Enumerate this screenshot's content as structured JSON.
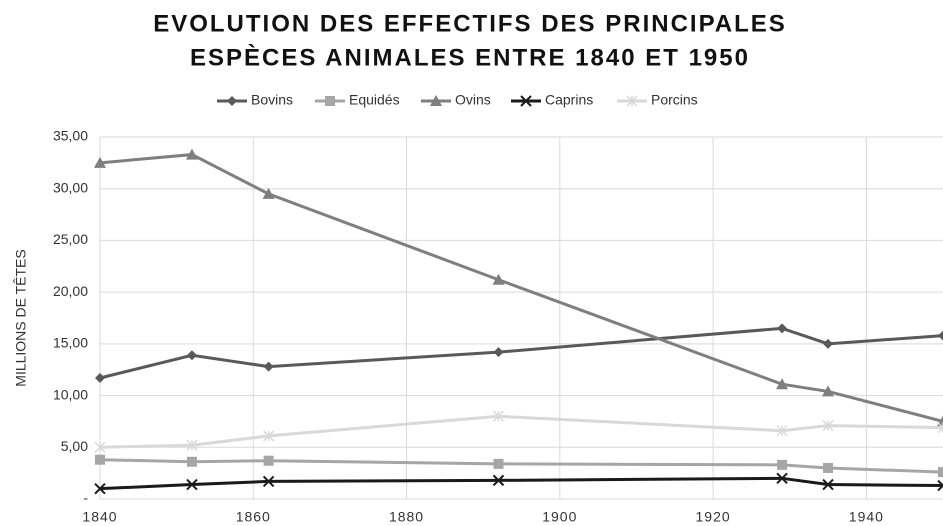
{
  "chart_data": {
    "type": "line",
    "title": [
      "EVOLUTION DES EFFECTIFS DES PRINCIPALES",
      "ESPÈCES ANIMALES ENTRE 1840 ET 1950"
    ],
    "y_label": "MILLIONS DE TÊTES",
    "x": [
      1840,
      1852,
      1862,
      1892,
      1929,
      1935,
      1950
    ],
    "series": [
      {
        "name": "Bovins",
        "color": "#595959",
        "marker": "diamond",
        "values": [
          11.7,
          13.9,
          12.8,
          14.2,
          16.5,
          15.0,
          15.8
        ]
      },
      {
        "name": "Equidés",
        "color": "#a6a6a6",
        "marker": "square",
        "values": [
          3.8,
          3.6,
          3.7,
          3.4,
          3.3,
          3.0,
          2.6
        ]
      },
      {
        "name": "Ovins",
        "color": "#7f7f7f",
        "marker": "triangle",
        "values": [
          32.5,
          33.3,
          29.5,
          21.2,
          11.1,
          10.4,
          7.5
        ]
      },
      {
        "name": "Caprins",
        "color": "#1a1a1a",
        "marker": "x",
        "values": [
          1.0,
          1.4,
          1.7,
          1.8,
          2.0,
          1.4,
          1.3
        ]
      },
      {
        "name": "Porcins",
        "color": "#d9d9d9",
        "marker": "star",
        "values": [
          5.0,
          5.2,
          6.1,
          8.0,
          6.6,
          7.1,
          6.9
        ]
      }
    ],
    "xlim": [
      1840,
      1950
    ],
    "xticks": [
      1840,
      1860,
      1880,
      1900,
      1920,
      1940
    ],
    "ylim": [
      0,
      35
    ],
    "yticks": [
      {
        "value": 0,
        "label": "-"
      },
      {
        "value": 5,
        "label": "5,00"
      },
      {
        "value": 10,
        "label": "10,00"
      },
      {
        "value": 15,
        "label": "15,00"
      },
      {
        "value": 20,
        "label": "20,00"
      },
      {
        "value": 25,
        "label": "25,00"
      },
      {
        "value": 30,
        "label": "30,00"
      },
      {
        "value": 35,
        "label": "35,00"
      }
    ],
    "grid": true,
    "legend": "top"
  }
}
